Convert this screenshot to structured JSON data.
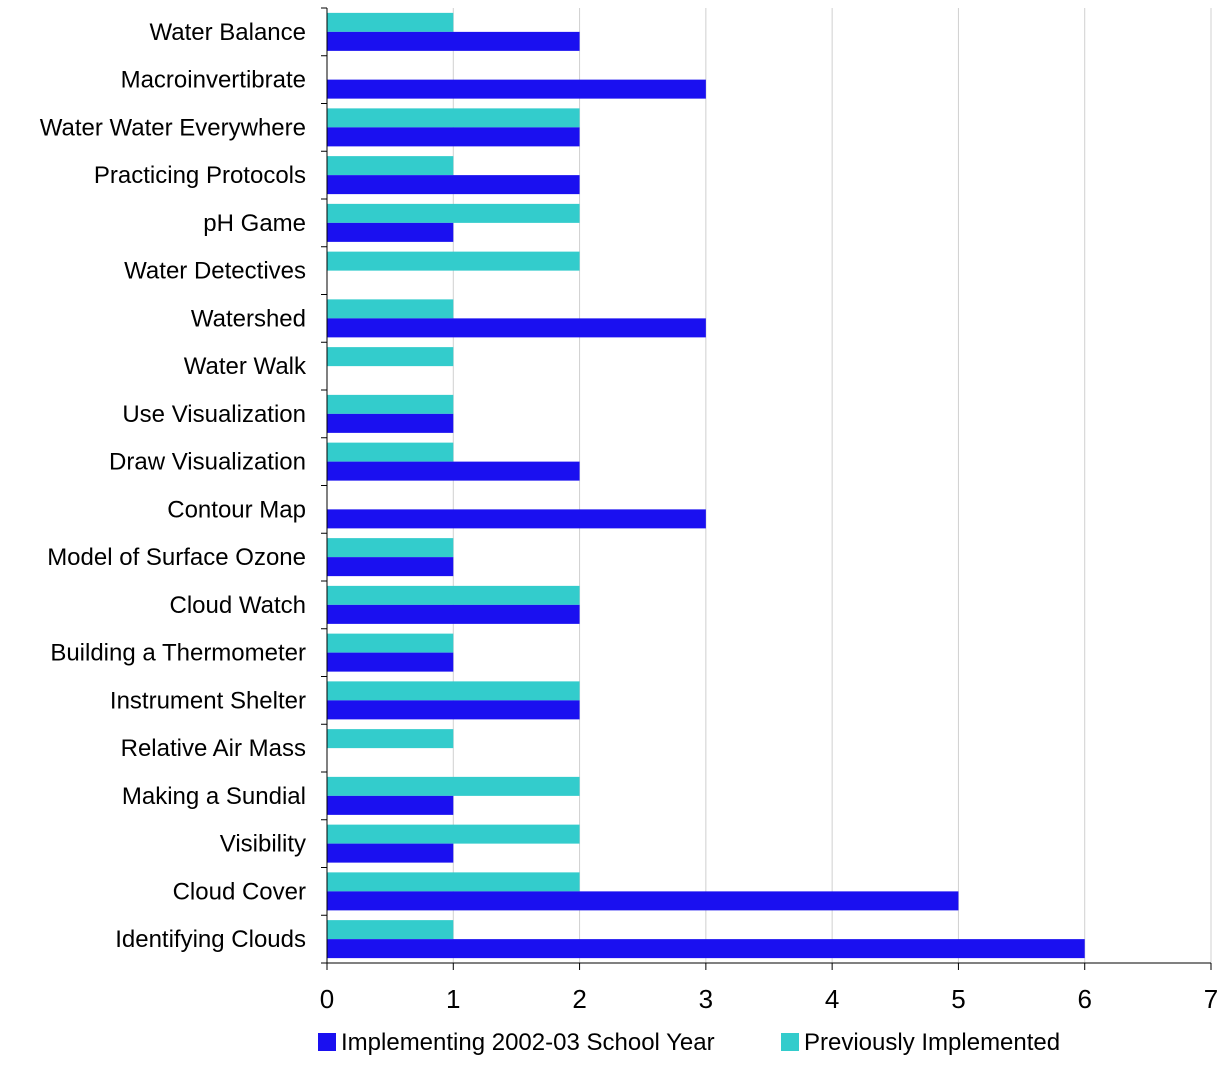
{
  "chart_data": {
    "type": "bar",
    "orientation": "horizontal",
    "categories": [
      "Water Balance",
      "Macroinvertibrate",
      "Water Water Everywhere",
      "Practicing Protocols",
      "pH Game",
      "Water Detectives",
      "Watershed",
      "Water Walk",
      "Use Visualization",
      "Draw Visualization",
      "Contour Map",
      "Model of Surface Ozone",
      "Cloud Watch",
      "Building a Thermometer",
      "Instrument Shelter",
      "Relative Air Mass",
      "Making a Sundial",
      "Visibility",
      "Cloud Cover",
      "Identifying Clouds"
    ],
    "series": [
      {
        "name": "Implementing 2002-03 School Year",
        "color": "#1a10f0",
        "values": [
          2,
          3,
          2,
          2,
          1,
          0,
          3,
          0,
          1,
          2,
          3,
          1,
          2,
          1,
          2,
          0,
          1,
          1,
          5,
          6
        ]
      },
      {
        "name": "Previously Implemented",
        "color": "#33cccc",
        "values": [
          1,
          0,
          2,
          1,
          2,
          2,
          1,
          1,
          1,
          1,
          0,
          1,
          2,
          1,
          2,
          1,
          2,
          2,
          2,
          1
        ]
      }
    ],
    "xlim": [
      0,
      7
    ],
    "xticks": [
      "0",
      "1",
      "2",
      "3",
      "4",
      "5",
      "6",
      "7"
    ],
    "grid": "vertical",
    "legend": "bottom",
    "title": "",
    "xlabel": "",
    "ylabel": ""
  }
}
